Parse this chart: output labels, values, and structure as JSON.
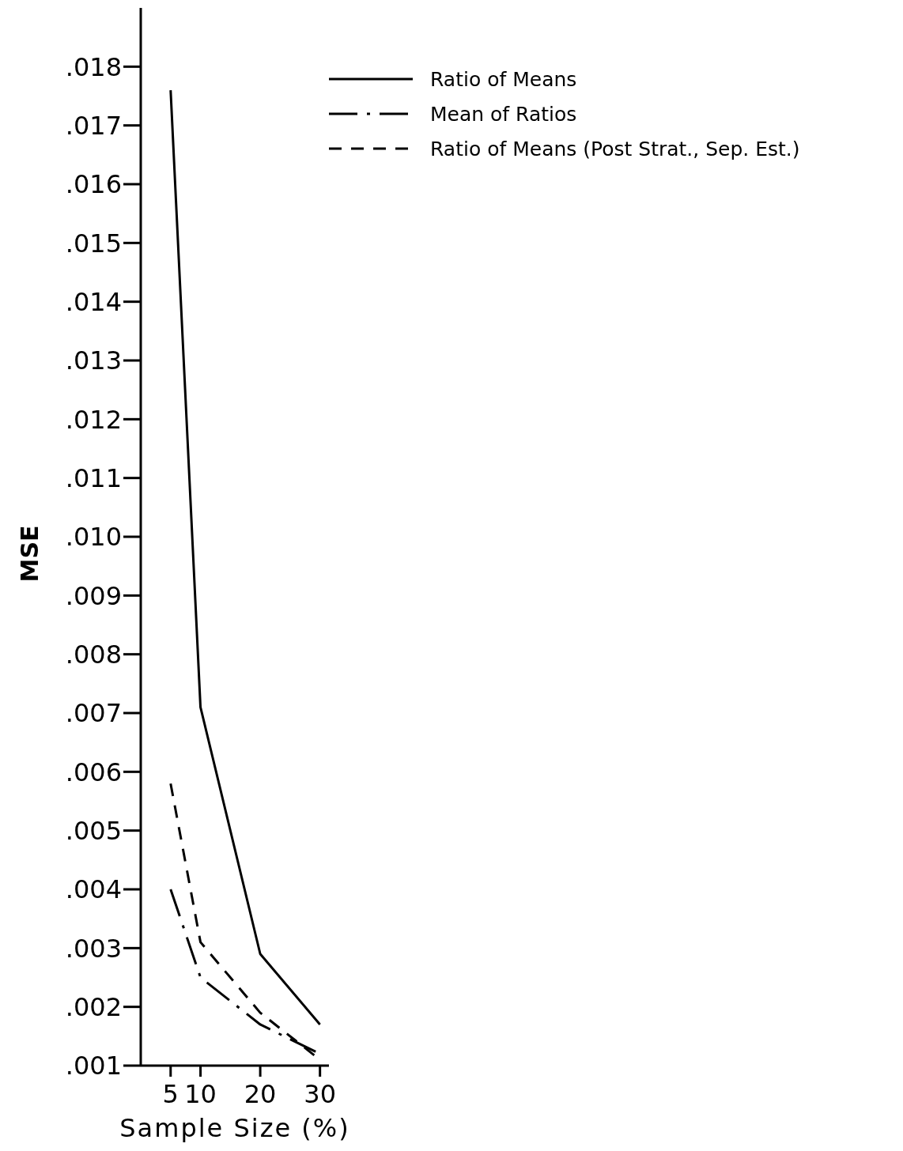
{
  "chart_data": {
    "type": "line",
    "xlabel": "Sample Size (%)",
    "ylabel": "MSE",
    "x": [
      5,
      10,
      20,
      30
    ],
    "xlim": [
      0,
      31.5
    ],
    "xticks": [
      5,
      10,
      20,
      30
    ],
    "ylim": [
      0.001,
      0.019
    ],
    "yticks": [
      {
        "value": 0.001,
        "label": ".001"
      },
      {
        "value": 0.002,
        "label": ".002"
      },
      {
        "value": 0.003,
        "label": ".003"
      },
      {
        "value": 0.004,
        "label": ".004"
      },
      {
        "value": 0.005,
        "label": ".005"
      },
      {
        "value": 0.006,
        "label": ".006"
      },
      {
        "value": 0.007,
        "label": ".007"
      },
      {
        "value": 0.008,
        "label": ".008"
      },
      {
        "value": 0.009,
        "label": ".009"
      },
      {
        "value": 0.01,
        "label": ".010"
      },
      {
        "value": 0.011,
        "label": ".011"
      },
      {
        "value": 0.012,
        "label": ".012"
      },
      {
        "value": 0.013,
        "label": ".013"
      },
      {
        "value": 0.014,
        "label": ".014"
      },
      {
        "value": 0.015,
        "label": ".015"
      },
      {
        "value": 0.016,
        "label": ".016"
      },
      {
        "value": 0.017,
        "label": ".017"
      },
      {
        "value": 0.018,
        "label": ".018"
      }
    ],
    "grid": false,
    "legend": "top right",
    "marker": "none",
    "series": [
      {
        "name": "Ratio of Means",
        "color": "#000000",
        "line_style": "solid",
        "values": [
          0.0176,
          0.0071,
          0.0029,
          0.0017
        ]
      },
      {
        "name": "Mean of Ratios",
        "color": "#000000",
        "line_style": "dashdot",
        "values": [
          0.004,
          0.0025,
          0.0017,
          0.0012
        ]
      },
      {
        "name": "Ratio of Means (Post Strat., Sep. Est.)",
        "color": "#000000",
        "line_style": "dashed",
        "values": [
          0.0058,
          0.0031,
          0.0019,
          0.0011
        ]
      }
    ]
  }
}
